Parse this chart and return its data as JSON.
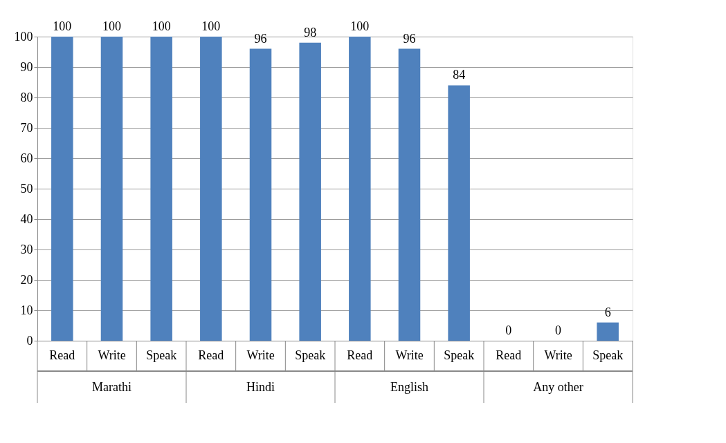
{
  "chart_data": {
    "type": "bar",
    "categories": [
      "Read",
      "Write",
      "Speak",
      "Read",
      "Write",
      "Speak",
      "Read",
      "Write",
      "Speak",
      "Read",
      "Write",
      "Speak"
    ],
    "values": [
      100,
      100,
      100,
      100,
      96,
      98,
      100,
      96,
      84,
      0,
      0,
      6
    ],
    "color": "#4f81bd",
    "annotations": [
      "Marathi",
      "Hindi",
      "English",
      "Any other"
    ],
    "ylim": [
      0,
      100
    ],
    "yticks": [
      0,
      10,
      20,
      30,
      40,
      50,
      60,
      70,
      80,
      90,
      100
    ],
    "grid": "y",
    "data_labels": true
  }
}
